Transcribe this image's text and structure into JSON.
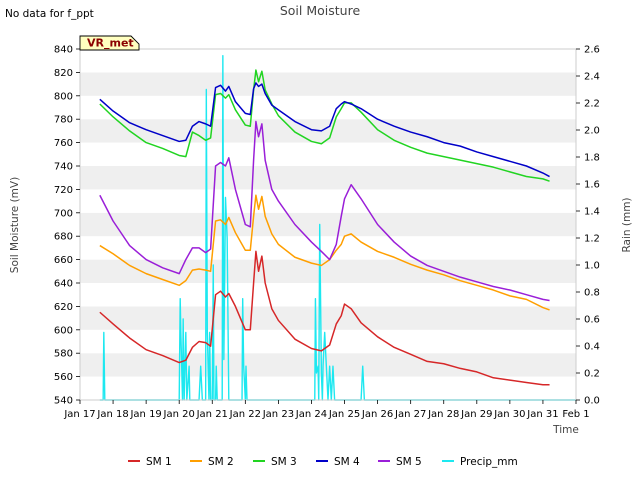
{
  "chart_data": {
    "type": "line",
    "title": "Soil Moisture",
    "top_left_note": "No data for f_ppt",
    "station_label": "VR_met",
    "xlabel": "Time",
    "ylabel_left": "Soil Moisture (mV)",
    "ylabel_right": "Rain (mm)",
    "xlim": [
      17,
      32
    ],
    "ylim_left": [
      540,
      840
    ],
    "ylim_right": [
      0,
      2.6
    ],
    "x_tick_values": [
      17,
      18,
      19,
      20,
      21,
      22,
      23,
      24,
      25,
      26,
      27,
      28,
      29,
      30,
      31,
      32
    ],
    "x_tick_labels": [
      "Jan 17",
      "Jan 18",
      "Jan 19",
      "Jan 20",
      "Jan 21",
      "Jan 22",
      "Jan 23",
      "Jan 24",
      "Jan 25",
      "Jan 26",
      "Jan 27",
      "Jan 28",
      "Jan 29",
      "Jan 30",
      "Jan 31",
      "Feb 1"
    ],
    "y_left_ticks": [
      540,
      560,
      580,
      600,
      620,
      640,
      660,
      680,
      700,
      720,
      740,
      760,
      780,
      800,
      820,
      840
    ],
    "y_right_ticks": [
      0.0,
      0.2,
      0.4,
      0.6,
      0.8,
      1.0,
      1.2,
      1.4,
      1.6,
      1.8,
      2.0,
      2.2,
      2.4,
      2.6
    ],
    "y_left_tick_labels": [
      "540",
      "560",
      "580",
      "600",
      "620",
      "640",
      "660",
      "680",
      "700",
      "720",
      "740",
      "760",
      "780",
      "800",
      "820",
      "840"
    ],
    "y_right_tick_labels": [
      "0.0",
      "0.2",
      "0.4",
      "0.6",
      "0.8",
      "1.0",
      "1.2",
      "1.4",
      "1.6",
      "1.8",
      "2.0",
      "2.2",
      "2.4",
      "2.6"
    ],
    "grid": "horizontal bands",
    "legend_position": "bottom",
    "series": [
      {
        "name": "SM 1",
        "axis": "left",
        "color": "#d62728",
        "x": [
          17.6,
          18.0,
          18.5,
          19.0,
          19.5,
          20.0,
          20.2,
          20.4,
          20.6,
          20.8,
          20.95,
          21.1,
          21.25,
          21.4,
          21.5,
          21.7,
          22.0,
          22.15,
          22.25,
          22.32,
          22.4,
          22.5,
          22.6,
          22.8,
          23.0,
          23.5,
          24.0,
          24.3,
          24.55,
          24.75,
          24.9,
          25.0,
          25.2,
          25.5,
          26.0,
          26.5,
          27.0,
          27.5,
          28.0,
          28.5,
          29.0,
          29.5,
          30.0,
          30.5,
          31.0,
          31.2
        ],
        "y": [
          615,
          605,
          593,
          583,
          578,
          572,
          574,
          585,
          590,
          589,
          586,
          630,
          633,
          628,
          631,
          620,
          600,
          600,
          640,
          667,
          650,
          663,
          640,
          618,
          608,
          592,
          584,
          582,
          587,
          605,
          612,
          622,
          618,
          606,
          594,
          585,
          579,
          573,
          571,
          567,
          564,
          559,
          557,
          555,
          553,
          553
        ]
      },
      {
        "name": "SM 2",
        "axis": "left",
        "color": "#ff9f00",
        "x": [
          17.6,
          18.0,
          18.5,
          19.0,
          19.5,
          20.0,
          20.2,
          20.4,
          20.6,
          20.8,
          20.95,
          21.1,
          21.25,
          21.4,
          21.5,
          21.7,
          22.0,
          22.15,
          22.25,
          22.32,
          22.4,
          22.5,
          22.6,
          22.8,
          23.0,
          23.5,
          24.0,
          24.3,
          24.55,
          24.75,
          24.9,
          25.0,
          25.2,
          25.5,
          26.0,
          26.5,
          27.0,
          27.5,
          28.0,
          28.5,
          29.0,
          29.5,
          30.0,
          30.5,
          31.0,
          31.2
        ],
        "y": [
          672,
          665,
          655,
          648,
          643,
          638,
          642,
          651,
          652,
          651,
          650,
          693,
          694,
          690,
          696,
          683,
          668,
          668,
          697,
          715,
          703,
          714,
          697,
          682,
          673,
          662,
          657,
          655,
          660,
          668,
          673,
          680,
          682,
          675,
          667,
          662,
          656,
          651,
          647,
          642,
          638,
          634,
          629,
          626,
          619,
          617
        ]
      },
      {
        "name": "SM 3",
        "axis": "left",
        "color": "#21d421",
        "x": [
          17.6,
          18.0,
          18.5,
          19.0,
          19.5,
          20.0,
          20.2,
          20.4,
          20.6,
          20.8,
          20.95,
          21.1,
          21.25,
          21.4,
          21.5,
          21.7,
          22.0,
          22.15,
          22.25,
          22.32,
          22.4,
          22.5,
          22.6,
          22.8,
          23.0,
          23.5,
          24.0,
          24.3,
          24.55,
          24.75,
          24.9,
          25.0,
          25.2,
          25.5,
          26.0,
          26.5,
          27.0,
          27.5,
          28.0,
          28.5,
          29.0,
          29.5,
          30.0,
          30.5,
          31.0,
          31.2
        ],
        "y": [
          793,
          782,
          770,
          760,
          755,
          749,
          748,
          769,
          766,
          762,
          764,
          801,
          802,
          798,
          801,
          788,
          775,
          774,
          805,
          822,
          812,
          821,
          805,
          793,
          783,
          769,
          761,
          759,
          764,
          782,
          789,
          794,
          794,
          786,
          771,
          762,
          756,
          751,
          748,
          745,
          742,
          739,
          735,
          731,
          729,
          727
        ]
      },
      {
        "name": "SM 4",
        "axis": "left",
        "color": "#0000c8",
        "x": [
          17.6,
          18.0,
          18.5,
          19.0,
          19.5,
          20.0,
          20.2,
          20.4,
          20.6,
          20.8,
          20.95,
          21.1,
          21.25,
          21.4,
          21.5,
          21.7,
          22.0,
          22.15,
          22.25,
          22.32,
          22.4,
          22.5,
          22.6,
          22.8,
          23.0,
          23.5,
          24.0,
          24.3,
          24.55,
          24.75,
          24.9,
          25.0,
          25.2,
          25.5,
          26.0,
          26.5,
          27.0,
          27.5,
          28.0,
          28.5,
          29.0,
          29.5,
          30.0,
          30.5,
          31.0,
          31.2
        ],
        "y": [
          797,
          787,
          777,
          771,
          766,
          761,
          762,
          774,
          778,
          776,
          774,
          807,
          809,
          804,
          808,
          795,
          785,
          784,
          806,
          811,
          808,
          810,
          802,
          792,
          788,
          778,
          771,
          770,
          774,
          789,
          793,
          795,
          793,
          789,
          780,
          774,
          769,
          765,
          760,
          757,
          752,
          748,
          744,
          740,
          734,
          731
        ]
      },
      {
        "name": "SM 5",
        "axis": "left",
        "color": "#9a1fd8",
        "x": [
          17.6,
          18.0,
          18.5,
          19.0,
          19.5,
          20.0,
          20.2,
          20.4,
          20.6,
          20.8,
          20.95,
          21.1,
          21.25,
          21.4,
          21.5,
          21.7,
          22.0,
          22.15,
          22.25,
          22.32,
          22.4,
          22.5,
          22.6,
          22.8,
          23.0,
          23.5,
          24.0,
          24.3,
          24.55,
          24.75,
          24.9,
          25.0,
          25.2,
          25.5,
          26.0,
          26.5,
          27.0,
          27.5,
          28.0,
          28.5,
          29.0,
          29.5,
          30.0,
          30.5,
          31.0,
          31.2
        ],
        "y": [
          715,
          693,
          672,
          660,
          653,
          648,
          660,
          670,
          670,
          666,
          669,
          740,
          743,
          740,
          747,
          720,
          690,
          688,
          745,
          778,
          765,
          776,
          745,
          720,
          710,
          690,
          675,
          667,
          660,
          673,
          697,
          712,
          724,
          712,
          690,
          675,
          663,
          655,
          650,
          645,
          641,
          637,
          634,
          630,
          626,
          625
        ]
      },
      {
        "name": "Precip_mm",
        "axis": "right",
        "color": "#1de8f0",
        "x": [
          17.6,
          17.7,
          17.72,
          17.75,
          17.9,
          20.0,
          20.03,
          20.05,
          20.1,
          20.12,
          20.15,
          20.2,
          20.23,
          20.3,
          20.32,
          20.35,
          20.6,
          20.65,
          20.7,
          20.8,
          20.82,
          20.85,
          20.9,
          20.92,
          20.95,
          21.0,
          21.03,
          21.05,
          21.1,
          21.12,
          21.15,
          21.2,
          21.25,
          21.3,
          21.32,
          21.35,
          21.4,
          21.45,
          21.5,
          21.8,
          21.9,
          21.92,
          21.95,
          22.0,
          22.02,
          22.05,
          22.1,
          22.12,
          22.15,
          22.2,
          22.25,
          22.3,
          22.35,
          22.4,
          22.45,
          22.5,
          24.0,
          24.1,
          24.12,
          24.15,
          24.2,
          24.22,
          24.25,
          24.3,
          24.33,
          24.35,
          24.4,
          24.45,
          24.5,
          24.55,
          24.6,
          24.65,
          24.7,
          24.8,
          24.85,
          24.9,
          25.0,
          25.03,
          25.05,
          25.1,
          25.5,
          25.55,
          25.6,
          32.0
        ],
        "y": [
          0,
          0,
          0.5,
          0,
          0,
          0,
          0.75,
          0.5,
          0,
          0.6,
          0,
          0.5,
          0,
          0.25,
          0,
          0,
          0,
          0.25,
          0,
          0,
          2.3,
          0.5,
          0,
          0.5,
          0,
          0,
          1.0,
          0,
          0,
          0.25,
          0,
          0,
          0,
          0,
          2.55,
          0.3,
          1.5,
          1.2,
          0,
          0,
          0,
          0.75,
          0.25,
          0,
          0.25,
          0,
          0,
          0,
          0,
          0,
          0,
          0,
          0,
          0,
          0,
          0,
          0,
          0,
          0.75,
          0.2,
          0.25,
          0,
          1.3,
          0.2,
          0,
          0.25,
          0.5,
          0.25,
          0,
          0.25,
          0,
          0.25,
          0,
          0,
          0,
          0,
          0,
          0,
          0,
          0,
          0,
          0.25,
          0,
          0
        ]
      }
    ]
  }
}
